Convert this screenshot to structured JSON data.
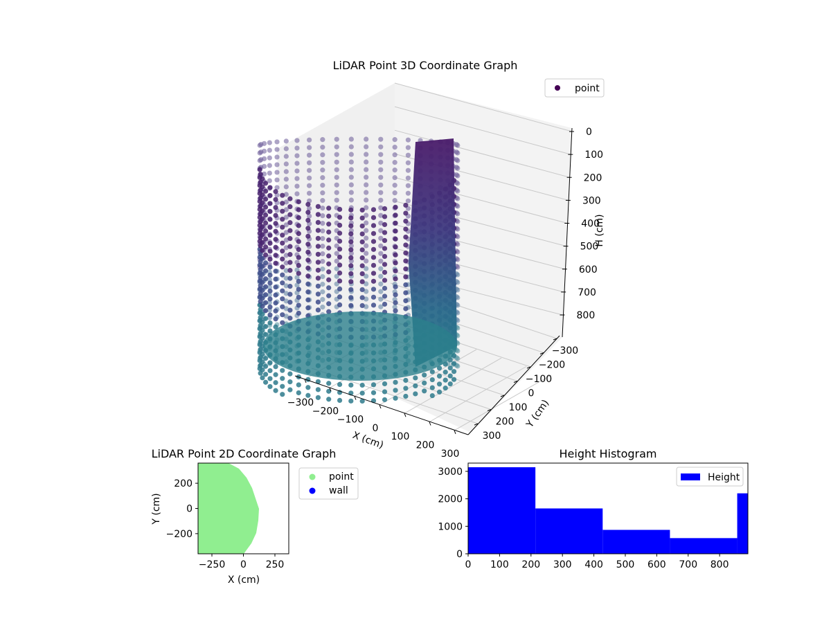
{
  "chart_data": [
    {
      "type": "scatter3d",
      "title": "LiDAR Point 3D Coordinate Graph",
      "xlabel": "X (cm)",
      "ylabel": "Y (cm)",
      "zlabel": "H (cm)",
      "x_ticks": [
        -300,
        -200,
        -100,
        0,
        100,
        200,
        300
      ],
      "y_ticks": [
        -300,
        -200,
        -100,
        0,
        100,
        200,
        300
      ],
      "z_ticks": [
        0,
        100,
        200,
        300,
        400,
        500,
        600,
        700,
        800
      ],
      "z_inverted": true,
      "legend": [
        {
          "label": "point",
          "color": "#440154"
        }
      ],
      "legend_position": "upper right",
      "colormap": "viridis",
      "shape": "half-cylinder of points, radius ~330 cm, height 0-880 cm",
      "grid": true
    },
    {
      "type": "scatter",
      "title": "LiDAR Point 2D Coordinate Graph",
      "xlabel": "X (cm)",
      "ylabel": "Y (cm)",
      "x_ticks": [
        -250,
        0,
        250
      ],
      "y_ticks": [
        -200,
        0,
        200
      ],
      "xlim": [
        -360,
        360
      ],
      "ylim": [
        -360,
        360
      ],
      "legend": [
        {
          "label": "point",
          "color": "#90ee90"
        },
        {
          "label": "wall",
          "color": "#0000ff"
        }
      ],
      "legend_position": "outside right",
      "description": "filled green region occupying x from -360 to ~120 cm, bounded on the right by an arc"
    },
    {
      "type": "bar",
      "title": "Height Histogram",
      "categories": [
        "0-214",
        "214-428",
        "428-642",
        "642-856",
        "856-890"
      ],
      "bin_edges": [
        0,
        214,
        428,
        642,
        856,
        890
      ],
      "values": [
        3150,
        1650,
        870,
        570,
        2200
      ],
      "series": [
        {
          "name": "Height",
          "color": "#0000ff",
          "values": [
            3150,
            1650,
            870,
            570,
            2200
          ]
        }
      ],
      "x_ticks": [
        0,
        100,
        200,
        300,
        400,
        500,
        600,
        700,
        800
      ],
      "y_ticks": [
        0,
        1000,
        2000,
        3000
      ],
      "xlim": [
        0,
        890
      ],
      "ylim": [
        0,
        3300
      ],
      "legend_position": "upper right",
      "grid": false
    }
  ],
  "labels": {
    "title3d": "LiDAR Point 3D Coordinate Graph",
    "title2d": "LiDAR Point 2D Coordinate Graph",
    "titleHist": "Height Histogram",
    "legend3d": "point",
    "legend2d_point": "point",
    "legend2d_wall": "wall",
    "legendHist": "Height",
    "x3d": "X (cm)",
    "y3d": "Y (cm)",
    "z3d": "H (cm)",
    "x2d": "X (cm)",
    "y2d": "Y (cm)"
  }
}
